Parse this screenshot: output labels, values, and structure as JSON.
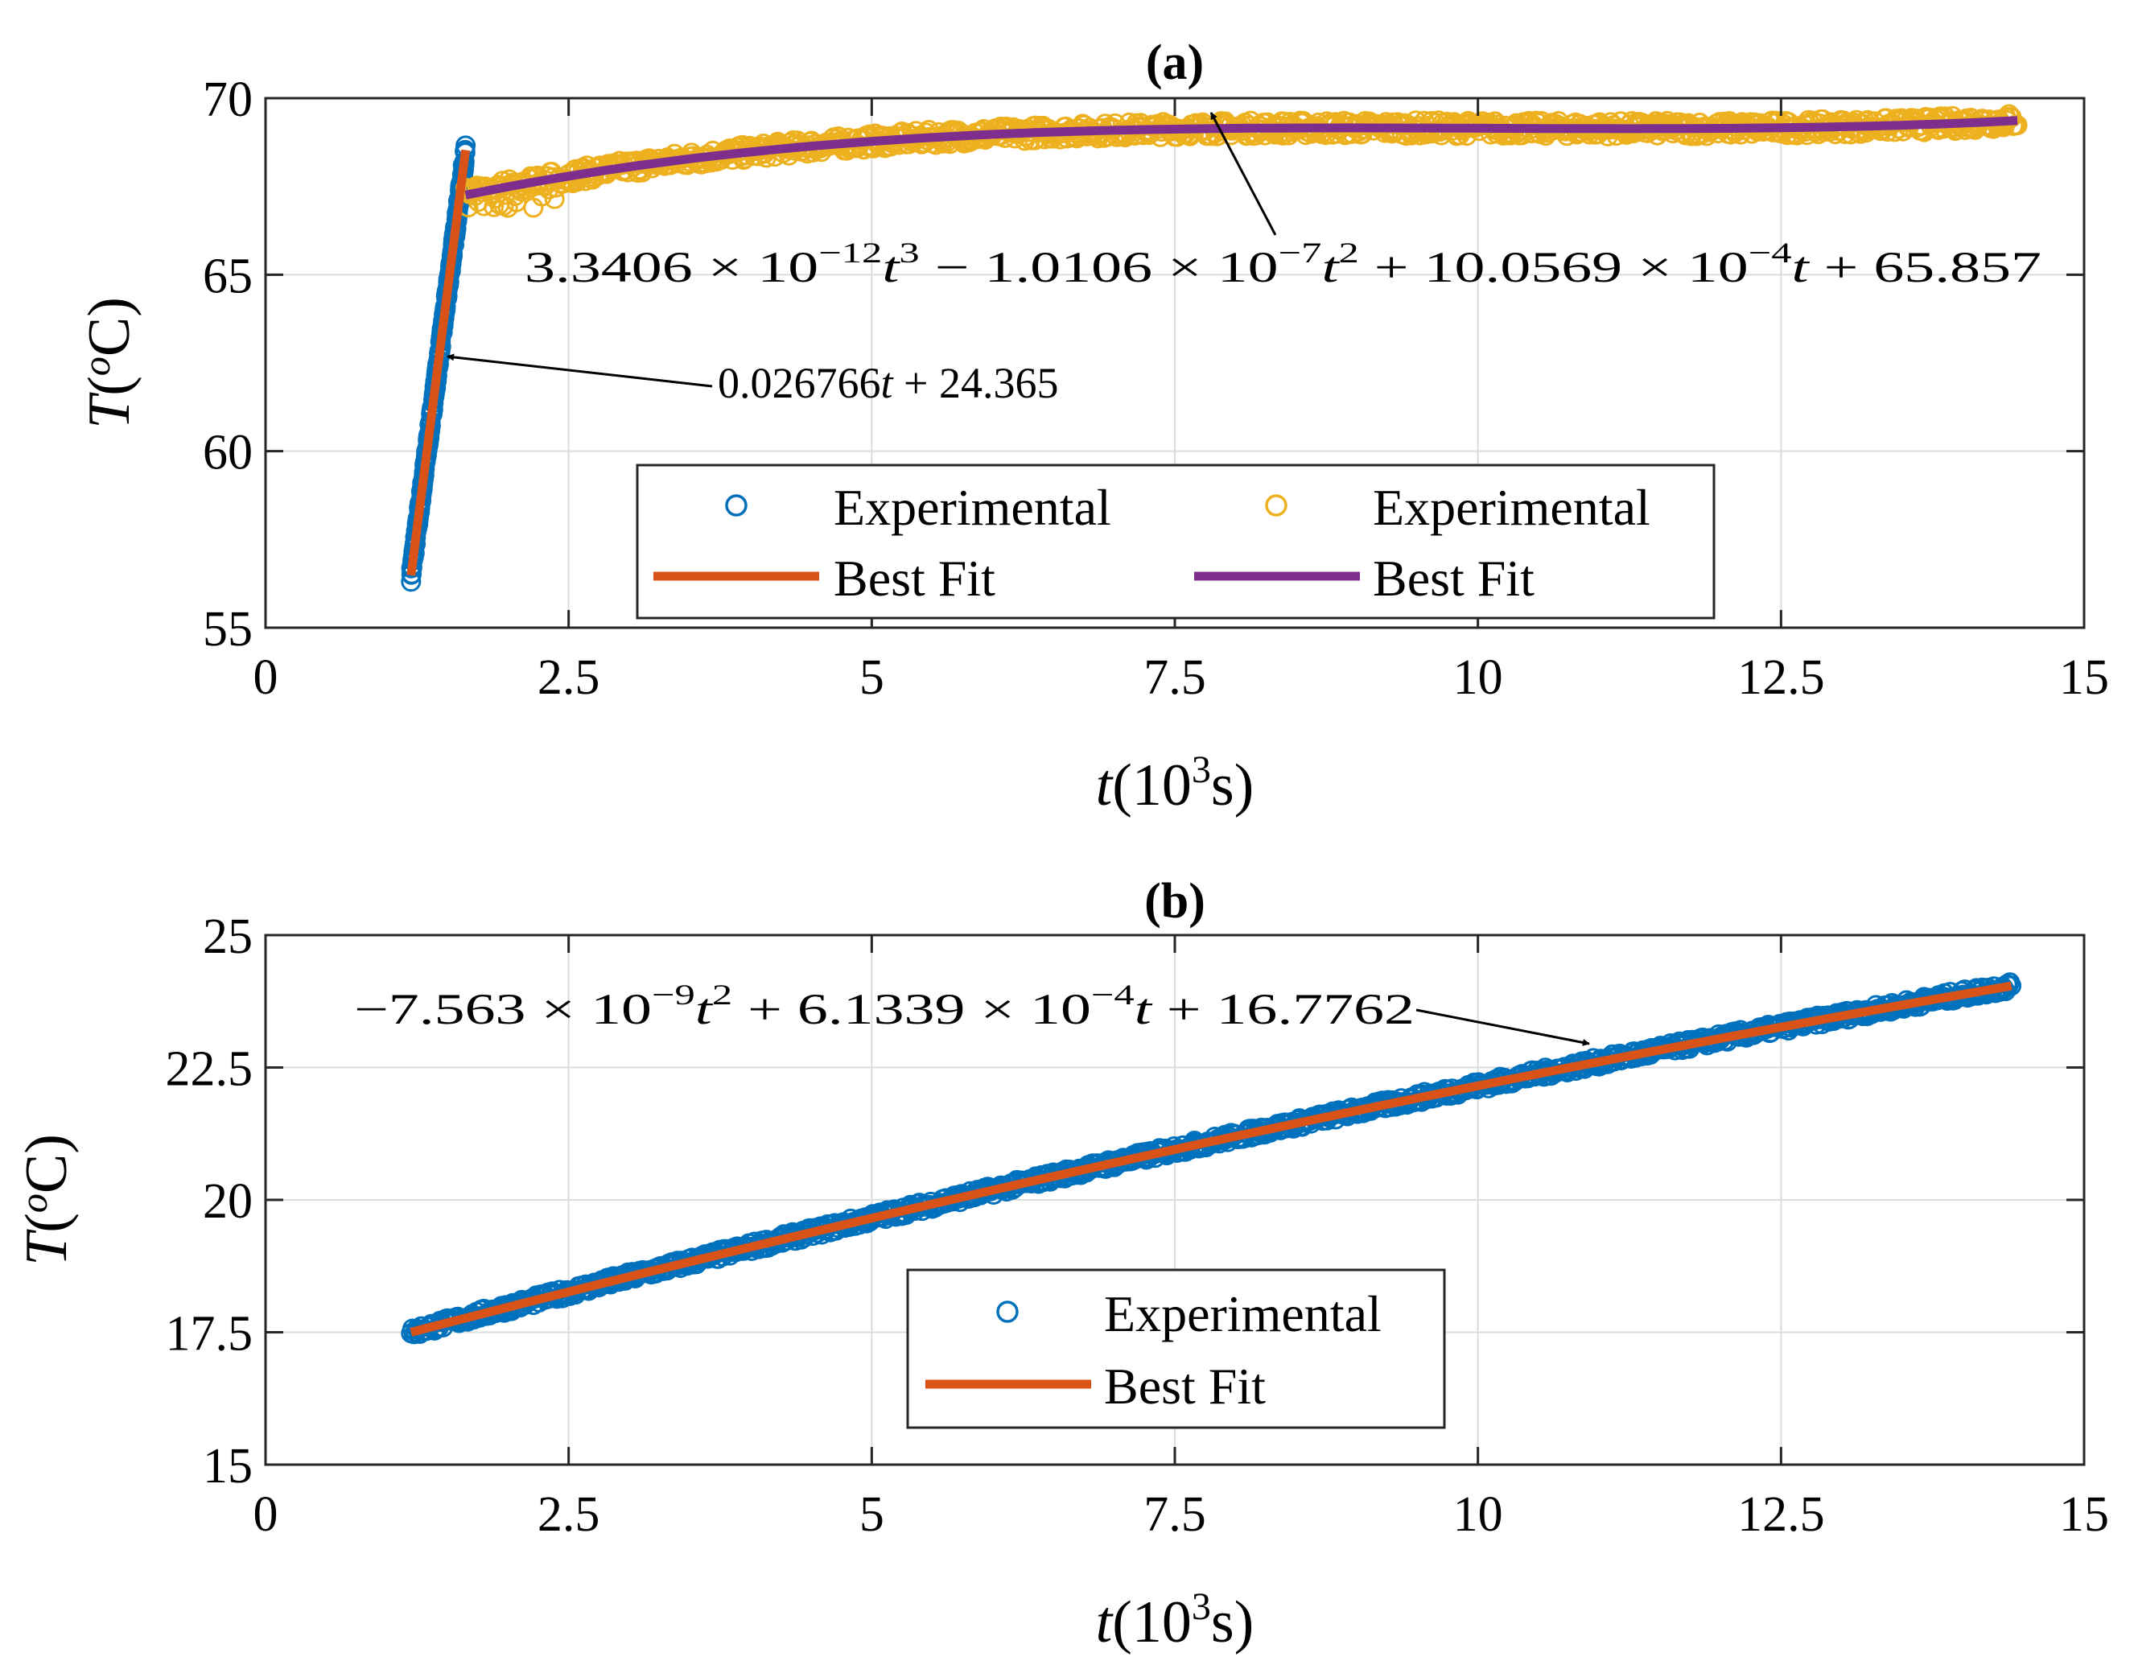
{
  "chart_data": [
    {
      "id": "a",
      "type": "scatter",
      "title": "(a)",
      "xlabel": {
        "var": "t",
        "unit_base": "(10",
        "unit_exp": "3",
        "unit_tail": "s)"
      },
      "ylabel": {
        "var": "T",
        "unit_open": "(",
        "unit_sup": "o",
        "unit_tail": "C)"
      },
      "xlim": [
        0,
        15
      ],
      "ylim": [
        55,
        70
      ],
      "xticks": [
        0,
        2.5,
        5,
        7.5,
        10,
        12.5,
        15
      ],
      "xtick_labels": [
        "0",
        "2.5",
        "5",
        "7.5",
        "10",
        "12.5",
        "15"
      ],
      "yticks": [
        55,
        60,
        65,
        70
      ],
      "ytick_labels": [
        "55",
        "60",
        "65",
        "70"
      ],
      "grid": true,
      "series": [
        {
          "name": "Experimental",
          "kind": "scatter",
          "color": "#0072BD",
          "t_start": 1.2,
          "t_end": 1.65,
          "fit": "linear_a"
        },
        {
          "name": "Best Fit",
          "kind": "line",
          "color": "#D95319",
          "t_start": 1.2,
          "t_end": 1.65,
          "fit": "linear_a"
        },
        {
          "name": "Experimental",
          "kind": "scatter",
          "color": "#EDB120",
          "t_start": 1.65,
          "t_end": 14.45,
          "fit": "cubic_a"
        },
        {
          "name": "Best Fit",
          "kind": "line",
          "color": "#7E2F8E",
          "t_start": 1.65,
          "t_end": 14.45,
          "fit": "cubic_a"
        }
      ],
      "annotations": [
        {
          "text": "0.026766t + 24.365",
          "points_to": [
            1.45,
            62.7
          ]
        },
        {
          "text": "3.3406 × 10^-12 t^3 − 1.0106 × 10^-7 t^2 + 10.0569 × 10^-4 t + 65.857",
          "points_to": [
            7.7,
            69.3
          ]
        }
      ],
      "legend": {
        "position": "lower-right",
        "columns": 2
      }
    },
    {
      "id": "b",
      "type": "scatter",
      "title": "(b)",
      "xlabel": {
        "var": "t",
        "unit_base": "(10",
        "unit_exp": "3",
        "unit_tail": "s)"
      },
      "ylabel": {
        "var": "T",
        "unit_open": "(",
        "unit_sup": "o",
        "unit_tail": "C)"
      },
      "xlim": [
        0,
        15
      ],
      "ylim": [
        15,
        25
      ],
      "xticks": [
        0,
        2.5,
        5,
        7.5,
        10,
        12.5,
        15
      ],
      "xtick_labels": [
        "0",
        "2.5",
        "5",
        "7.5",
        "10",
        "12.5",
        "15"
      ],
      "yticks": [
        15,
        17.5,
        20,
        22.5,
        25
      ],
      "ytick_labels": [
        "15",
        "17.5",
        "20",
        "22.5",
        "25"
      ],
      "grid": true,
      "series": [
        {
          "name": "Experimental",
          "kind": "scatter",
          "color": "#0072BD",
          "t_start": 1.2,
          "t_end": 14.4,
          "fit": "quad_b"
        },
        {
          "name": "Best Fit",
          "kind": "line",
          "color": "#D95319",
          "t_start": 1.2,
          "t_end": 14.4,
          "fit": "quad_b"
        }
      ],
      "annotations": [
        {
          "text": "−7.563 × 10^-9 t^2 + 6.1339 × 10^-4 t + 16.7762",
          "points_to": [
            11.0,
            22.65
          ]
        }
      ],
      "legend": {
        "position": "lower-center",
        "columns": 1
      }
    }
  ],
  "text": {
    "a_title": "(a)",
    "b_title": "(b)",
    "legend_exp": "Experimental",
    "legend_fit": "Best Fit",
    "ann_a1": {
      "p1": "0.026766",
      "v1": "t",
      "p2": " + 24.365"
    },
    "ann_a2": {
      "c1": "3.3406 × 10",
      "e1": "−12",
      "v1": "t",
      "e1b": "3",
      "c2": " − 1.0106 × 10",
      "e2": "−7",
      "v2": "t",
      "e2b": "2",
      "c3": " + 10.0569 × 10",
      "e3": "−4",
      "v3": "t",
      "c4": " + 65.857"
    },
    "ann_b1": {
      "c1": "−7.563 × 10",
      "e1": "−9",
      "v1": "t",
      "e1b": "2",
      "c2": " + 6.1339 × 10",
      "e2": "−4",
      "v2": "t",
      "c3": " + 16.7762"
    },
    "xlabel": {
      "var": "t",
      "base": "(10",
      "exp": "3",
      "tail": "s)"
    },
    "ylabel": {
      "var": "T",
      "open": "(",
      "sup": "o",
      "tail": "C)"
    }
  }
}
